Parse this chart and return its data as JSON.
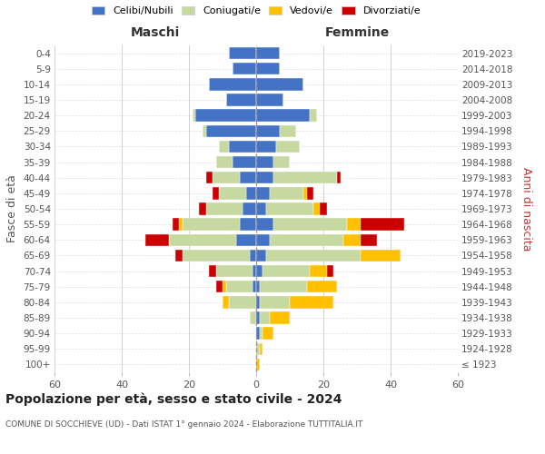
{
  "age_groups": [
    "100+",
    "95-99",
    "90-94",
    "85-89",
    "80-84",
    "75-79",
    "70-74",
    "65-69",
    "60-64",
    "55-59",
    "50-54",
    "45-49",
    "40-44",
    "35-39",
    "30-34",
    "25-29",
    "20-24",
    "15-19",
    "10-14",
    "5-9",
    "0-4"
  ],
  "birth_years": [
    "≤ 1923",
    "1924-1928",
    "1929-1933",
    "1934-1938",
    "1939-1943",
    "1944-1948",
    "1949-1953",
    "1954-1958",
    "1959-1963",
    "1964-1968",
    "1969-1973",
    "1974-1978",
    "1979-1983",
    "1984-1988",
    "1989-1993",
    "1994-1998",
    "1999-2003",
    "2004-2008",
    "2009-2013",
    "2014-2018",
    "2019-2023"
  ],
  "colors": {
    "celibi": "#4472c4",
    "coniugati": "#c5d9a0",
    "vedovi": "#ffc000",
    "divorziati": "#cc0000",
    "background": "#ffffff"
  },
  "maschi": {
    "celibi": [
      0,
      0,
      0,
      0,
      0,
      1,
      1,
      2,
      6,
      5,
      4,
      3,
      5,
      7,
      8,
      15,
      18,
      9,
      14,
      7,
      8
    ],
    "coniugati": [
      0,
      0,
      0,
      2,
      8,
      8,
      11,
      20,
      20,
      17,
      11,
      8,
      8,
      5,
      3,
      1,
      1,
      0,
      0,
      0,
      0
    ],
    "vedovi": [
      0,
      0,
      0,
      0,
      2,
      1,
      0,
      0,
      0,
      1,
      0,
      0,
      0,
      0,
      0,
      0,
      0,
      0,
      0,
      0,
      0
    ],
    "divorziati": [
      0,
      0,
      0,
      0,
      0,
      2,
      2,
      2,
      7,
      2,
      2,
      2,
      2,
      0,
      0,
      0,
      0,
      0,
      0,
      0,
      0
    ]
  },
  "femmine": {
    "celibi": [
      0,
      0,
      1,
      1,
      1,
      1,
      2,
      3,
      4,
      5,
      3,
      4,
      5,
      5,
      6,
      7,
      16,
      8,
      14,
      7,
      7
    ],
    "coniugati": [
      0,
      1,
      1,
      3,
      9,
      14,
      14,
      28,
      22,
      22,
      14,
      10,
      19,
      5,
      7,
      5,
      2,
      0,
      0,
      0,
      0
    ],
    "vedovi": [
      1,
      1,
      3,
      6,
      13,
      9,
      5,
      12,
      5,
      4,
      2,
      1,
      0,
      0,
      0,
      0,
      0,
      0,
      0,
      0,
      0
    ],
    "divorziati": [
      0,
      0,
      0,
      0,
      0,
      0,
      2,
      0,
      5,
      13,
      2,
      2,
      1,
      0,
      0,
      0,
      0,
      0,
      0,
      0,
      0
    ]
  },
  "xlim": 60,
  "title": "Popolazione per età, sesso e stato civile - 2024",
  "subtitle": "COMUNE DI SOCCHIEVE (UD) - Dati ISTAT 1° gennaio 2024 - Elaborazione TUTTITALIA.IT",
  "xlabel_left": "Maschi",
  "xlabel_right": "Femmine",
  "ylabel_left": "Fasce di età",
  "ylabel_right": "Anni di nascita",
  "legend_labels": [
    "Celibi/Nubili",
    "Coniugati/e",
    "Vedovi/e",
    "Divorziati/e"
  ]
}
